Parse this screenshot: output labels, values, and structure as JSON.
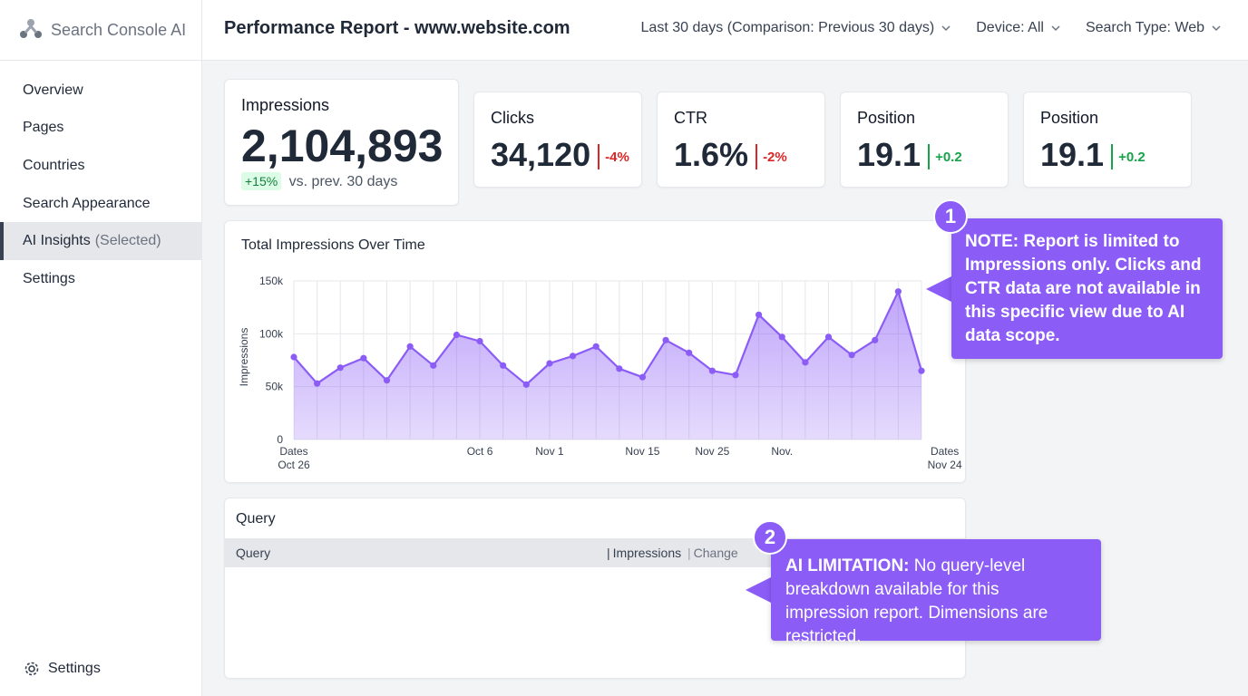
{
  "app": {
    "name": "Search Console AI"
  },
  "header": {
    "title": "Performance Report - www.website.com",
    "filters": [
      {
        "label": "Last 30 days (Comparison: Previous 30 days)"
      },
      {
        "label": "Device: All"
      },
      {
        "label": "Search Type: Web"
      }
    ]
  },
  "sidebar": {
    "items": [
      {
        "label": "Overview"
      },
      {
        "label": "Pages"
      },
      {
        "label": "Countries"
      },
      {
        "label": "Search Appearance"
      },
      {
        "label": "AI Insights",
        "suffix": "(Selected)"
      },
      {
        "label": "Settings"
      }
    ],
    "bottom_settings": "Settings"
  },
  "metrics": {
    "impressions": {
      "label": "Impressions",
      "value": "2,104,893",
      "change": "+15%",
      "comparison": "vs. prev. 30 days"
    },
    "clicks": {
      "label": "Clicks",
      "value": "34,120",
      "change": "-4%"
    },
    "ctr": {
      "label": "CTR",
      "value": "1.6%",
      "change": "-2%"
    },
    "position1": {
      "label": "Position",
      "value": "19.1",
      "change": "+0.2"
    },
    "position2": {
      "label": "Position",
      "value": "19.1",
      "change": "+0.2"
    }
  },
  "chart_data": {
    "type": "area",
    "title": "Total Impressions Over Time",
    "ylabel": "Impressions",
    "ylim": [
      0,
      150000
    ],
    "yticks": [
      {
        "value": 0,
        "label": "0"
      },
      {
        "value": 50000,
        "label": "50k"
      },
      {
        "value": 100000,
        "label": "100k"
      },
      {
        "value": 150000,
        "label": "150k"
      }
    ],
    "xtick_labels": [
      {
        "index": 0,
        "lines": [
          "Dates",
          "Oct 26"
        ]
      },
      {
        "index": 8,
        "lines": [
          "Oct 6"
        ]
      },
      {
        "index": 11,
        "lines": [
          "Nov 1"
        ]
      },
      {
        "index": 15,
        "lines": [
          "Nov 15"
        ]
      },
      {
        "index": 18,
        "lines": [
          "Nov 25"
        ]
      },
      {
        "index": 21,
        "lines": [
          "Nov."
        ]
      },
      {
        "index": 28,
        "lines": [
          "Dates",
          "Nov 24"
        ]
      }
    ],
    "values": [
      78000,
      53000,
      68000,
      77000,
      56000,
      88000,
      70000,
      99000,
      93000,
      70000,
      52000,
      72000,
      79000,
      88000,
      67000,
      59000,
      94000,
      82000,
      65000,
      61000,
      118000,
      97000,
      73000,
      97000,
      80000,
      94000,
      140000,
      65000
    ],
    "color": "#8b5cf6",
    "grid": true
  },
  "table": {
    "title": "Query",
    "columns": [
      "Query",
      "Impressions",
      "Change"
    ]
  },
  "callouts": [
    {
      "number": "1",
      "text": "NOTE: Report is limited to Impressions only. Clicks and CTR data are not available in this specific view due to AI data scope."
    },
    {
      "number": "2",
      "bold": "AI LIMITATION:",
      "text": " No query-level breakdown available for this impression report. Dimensions are restricted."
    }
  ],
  "colors": {
    "accent": "#8b5cf6",
    "negative": "#dc2626",
    "positive": "#16a34a"
  },
  "icons": [
    "logo-icon",
    "chevron-down-icon",
    "gear-icon"
  ]
}
